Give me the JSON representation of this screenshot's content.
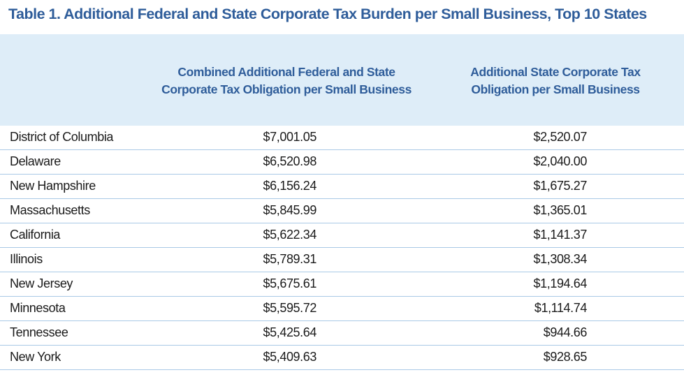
{
  "table": {
    "title": "Table 1. Additional Federal and State Corporate Tax Burden per Small Business, Top 10 States",
    "headers": {
      "state": "",
      "combined_line1": "Combined Additional Federal and State",
      "combined_line2": "Corporate Tax Obligation per Small Business",
      "state_tax_line1": "Additional State Corporate Tax",
      "state_tax_line2": "Obligation per Small Business"
    },
    "rows": [
      {
        "state": "District of Columbia",
        "combined": "$7,001.05",
        "state_tax": "$2,520.07"
      },
      {
        "state": "Delaware",
        "combined": "$6,520.98",
        "state_tax": "$2,040.00"
      },
      {
        "state": "New Hampshire",
        "combined": "$6,156.24",
        "state_tax": "$1,675.27"
      },
      {
        "state": "Massachusetts",
        "combined": "$5,845.99",
        "state_tax": "$1,365.01"
      },
      {
        "state": "California",
        "combined": "$5,622.34",
        "state_tax": "$1,141.37"
      },
      {
        "state": "Illinois",
        "combined": "$5,789.31",
        "state_tax": "$1,308.34"
      },
      {
        "state": "New Jersey",
        "combined": "$5,675.61",
        "state_tax": "$1,194.64"
      },
      {
        "state": "Minnesota",
        "combined": "$5,595.72",
        "state_tax": "$1,114.74"
      },
      {
        "state": "Tennessee",
        "combined": "$5,425.64",
        "state_tax": "$944.66"
      },
      {
        "state": "New York",
        "combined": "$5,409.63",
        "state_tax": "$928.65"
      }
    ]
  },
  "colors": {
    "title": "#2f5d9a",
    "header_band": "#deedf8",
    "row_rule": "#a9c9e6",
    "body_text": "#1a1a1a"
  }
}
